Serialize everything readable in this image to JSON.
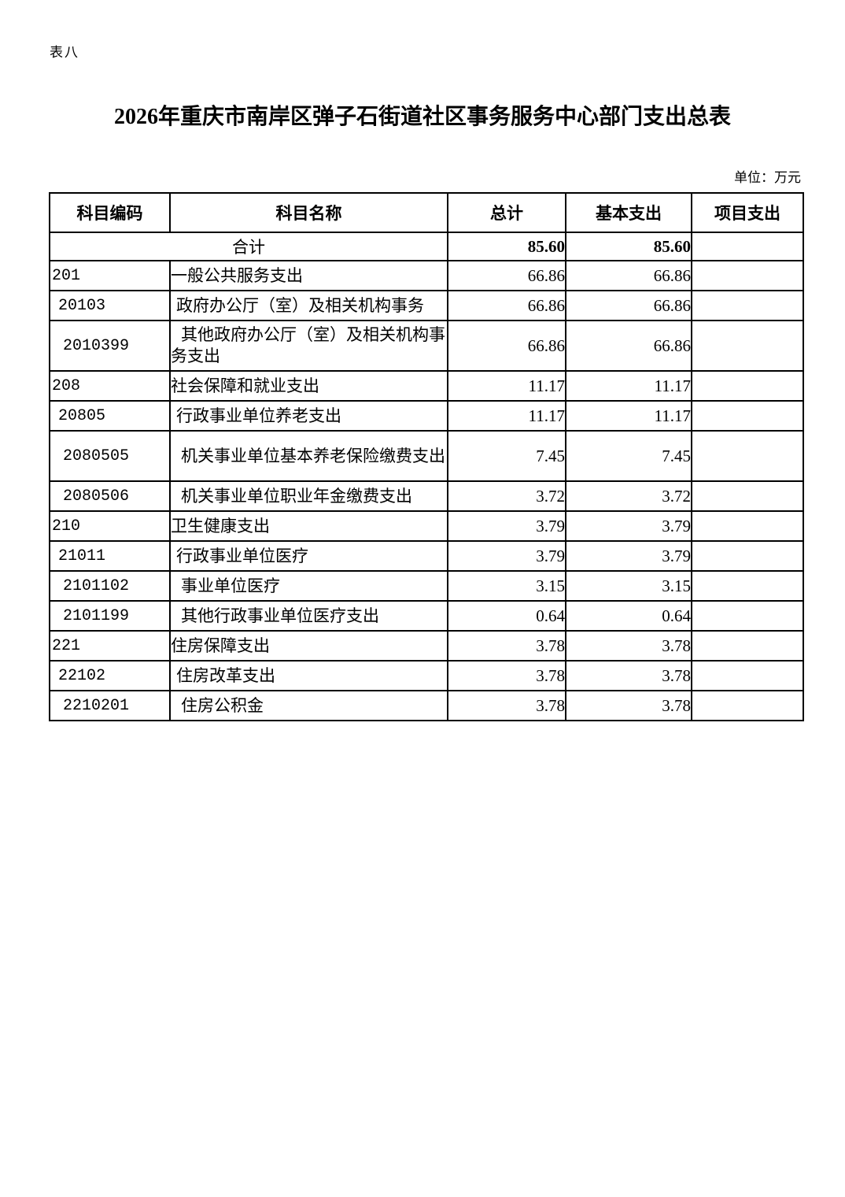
{
  "page": {
    "tag": "表八",
    "title": "2026年重庆市南岸区弹子石街道社区事务服务中心部门支出总表",
    "unit_note": "单位：万元"
  },
  "table": {
    "headers": {
      "code": "科目编码",
      "name": "科目名称",
      "total": "总计",
      "basic": "基本支出",
      "project": "项目支出"
    },
    "total_row": {
      "label": "合计",
      "total": "85.60",
      "basic": "85.60",
      "project": ""
    },
    "rows": [
      {
        "code": "201",
        "name": "一般公共服务支出",
        "total": "66.86",
        "basic": "66.86",
        "project": "",
        "level": 1
      },
      {
        "code": "20103",
        "name": "政府办公厅（室）及相关机构事务",
        "total": "66.86",
        "basic": "66.86",
        "project": "",
        "level": 2
      },
      {
        "code": "2010399",
        "name": "其他政府办公厅（室）及相关机构事务支出",
        "total": "66.86",
        "basic": "66.86",
        "project": "",
        "level": 3
      },
      {
        "code": "208",
        "name": "社会保障和就业支出",
        "total": "11.17",
        "basic": "11.17",
        "project": "",
        "level": 1
      },
      {
        "code": "20805",
        "name": "行政事业单位养老支出",
        "total": "11.17",
        "basic": "11.17",
        "project": "",
        "level": 2
      },
      {
        "code": "2080505",
        "name": "机关事业单位基本养老保险缴费支出",
        "total": "7.45",
        "basic": "7.45",
        "project": "",
        "level": 3
      },
      {
        "code": "2080506",
        "name": "机关事业单位职业年金缴费支出",
        "total": "3.72",
        "basic": "3.72",
        "project": "",
        "level": 3
      },
      {
        "code": "210",
        "name": "卫生健康支出",
        "total": "3.79",
        "basic": "3.79",
        "project": "",
        "level": 1
      },
      {
        "code": "21011",
        "name": "行政事业单位医疗",
        "total": "3.79",
        "basic": "3.79",
        "project": "",
        "level": 2
      },
      {
        "code": "2101102",
        "name": "事业单位医疗",
        "total": "3.15",
        "basic": "3.15",
        "project": "",
        "level": 3
      },
      {
        "code": "2101199",
        "name": "其他行政事业单位医疗支出",
        "total": "0.64",
        "basic": "0.64",
        "project": "",
        "level": 3
      },
      {
        "code": "221",
        "name": "住房保障支出",
        "total": "3.78",
        "basic": "3.78",
        "project": "",
        "level": 1
      },
      {
        "code": "22102",
        "name": "住房改革支出",
        "total": "3.78",
        "basic": "3.78",
        "project": "",
        "level": 2
      },
      {
        "code": "2210201",
        "name": "住房公积金",
        "total": "3.78",
        "basic": "3.78",
        "project": "",
        "level": 3
      }
    ]
  }
}
